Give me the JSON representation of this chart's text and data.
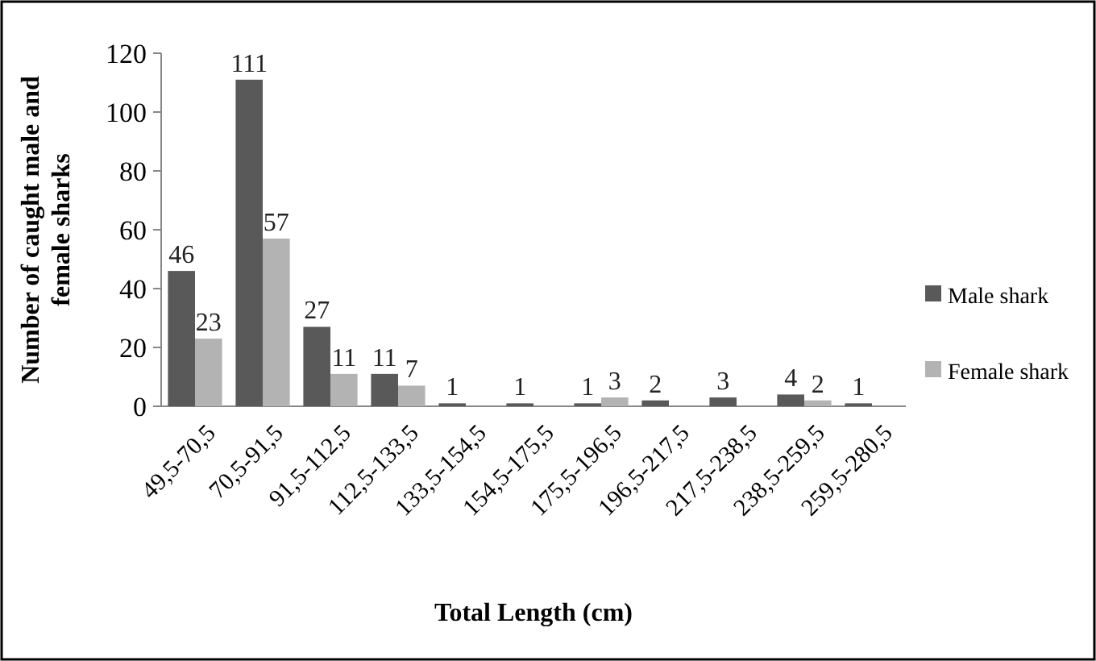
{
  "chart_data": {
    "type": "bar",
    "xlabel": "Total Length (cm)",
    "ylabel": "Number of caught male and female sharks",
    "categories": [
      "49,5-70,5",
      "70,5-91,5",
      "91,5-112,5",
      "112,5-133,5",
      "133,5-154,5",
      "154,5-175,5",
      "175,5-196,5",
      "196,5-217,5",
      "217,5-238,5",
      "238,5-259,5",
      "259,5-280,5"
    ],
    "series": [
      {
        "name": "Male shark",
        "color": "#595959",
        "values": [
          46,
          111,
          27,
          11,
          1,
          1,
          1,
          2,
          3,
          4,
          1
        ]
      },
      {
        "name": "Female shark",
        "color": "#b3b3b3",
        "values": [
          23,
          57,
          11,
          7,
          null,
          null,
          3,
          null,
          null,
          2,
          null
        ]
      }
    ],
    "ylim": [
      0,
      120
    ],
    "yticks": [
      0,
      20,
      40,
      60,
      80,
      100,
      120
    ],
    "data_labels": true,
    "legend": "right",
    "grid": false
  }
}
